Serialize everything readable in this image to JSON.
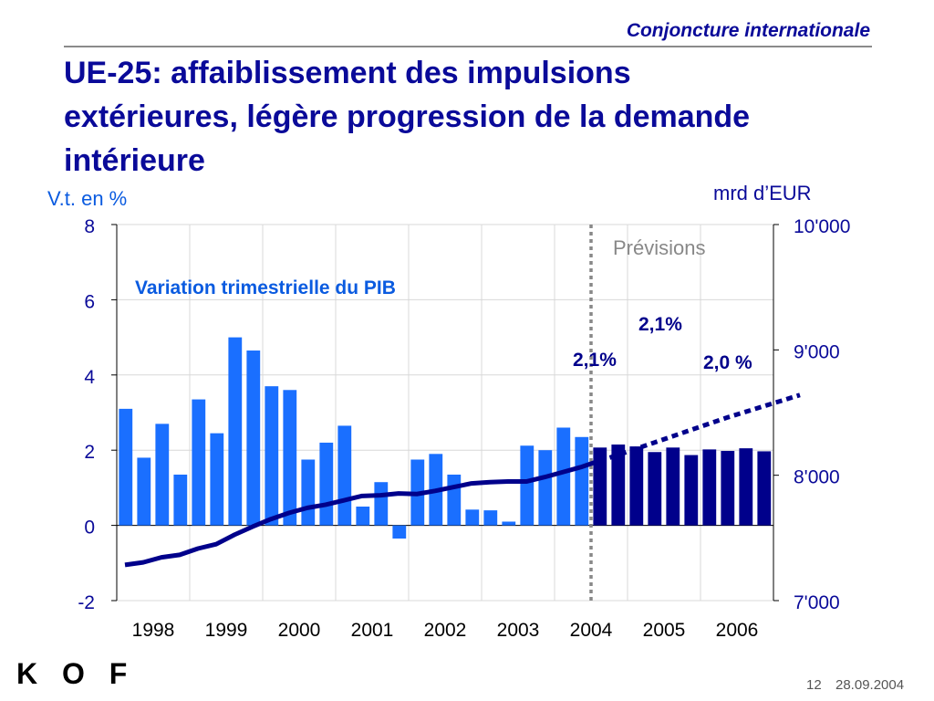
{
  "header": {
    "section": "Conjoncture internationale"
  },
  "slide": {
    "title": "UE-25: affaiblissement des impulsions extérieures, légère progression de la demande intérieure"
  },
  "footer": {
    "logo": "K O F",
    "page": "12",
    "date": "28.09.2004"
  },
  "colors": {
    "bar_actual": "#1a6fff",
    "bar_forecast": "#00008b",
    "line": "#00008b",
    "annotation_blue": "#0a5be0",
    "annotation_navy": "#00008b",
    "divider": "#888888",
    "grid": "#d8d8d8"
  },
  "chart_data": {
    "type": "bar",
    "title": "",
    "left_axis": {
      "label": "V.t. en %",
      "range": [
        -2,
        8
      ],
      "ticks": [
        "8",
        "6",
        "4",
        "2",
        "0",
        "-2"
      ]
    },
    "right_axis": {
      "label": "mrd d’EUR",
      "range": [
        7000,
        10000
      ],
      "ticks": [
        "10'000",
        "9'000",
        "8'000",
        "7'000"
      ]
    },
    "years": [
      "1998",
      "1999",
      "2000",
      "2001",
      "2002",
      "2003",
      "2004",
      "2005",
      "2006"
    ],
    "bars": {
      "name": "Variation trimestrielle du PIB",
      "axis": "left",
      "actual": [
        3.1,
        1.8,
        2.7,
        1.35,
        3.35,
        2.45,
        5.0,
        4.65,
        3.7,
        3.6,
        1.75,
        2.2,
        2.65,
        0.5,
        1.15,
        -0.35,
        1.75,
        1.9,
        1.35,
        0.42,
        0.4,
        0.1,
        2.12,
        2.0,
        2.6,
        2.35
      ],
      "forecast": [
        2.07,
        2.15,
        2.1,
        1.95,
        2.07,
        1.87,
        2.02,
        1.98,
        2.05,
        1.97
      ]
    },
    "line": {
      "axis": "right",
      "actual": [
        7285,
        7305,
        7345,
        7365,
        7415,
        7450,
        7525,
        7590,
        7650,
        7700,
        7740,
        7765,
        7800,
        7835,
        7840,
        7855,
        7850,
        7875,
        7905,
        7935,
        7945,
        7950,
        7950,
        7985,
        8025,
        8065,
        8115
      ],
      "forecast": [
        8115,
        8160,
        8210,
        8260,
        8310,
        8360,
        8410,
        8460,
        8505,
        8550,
        8595,
        8640
      ]
    },
    "forecast_label": "Prévisions",
    "annotations": {
      "pib_label": "Variation trimestrielle du PIB",
      "growth_2004": "2,1%",
      "growth_2005": "2,1%",
      "growth_2006": "2,0 %"
    },
    "grid": true
  }
}
